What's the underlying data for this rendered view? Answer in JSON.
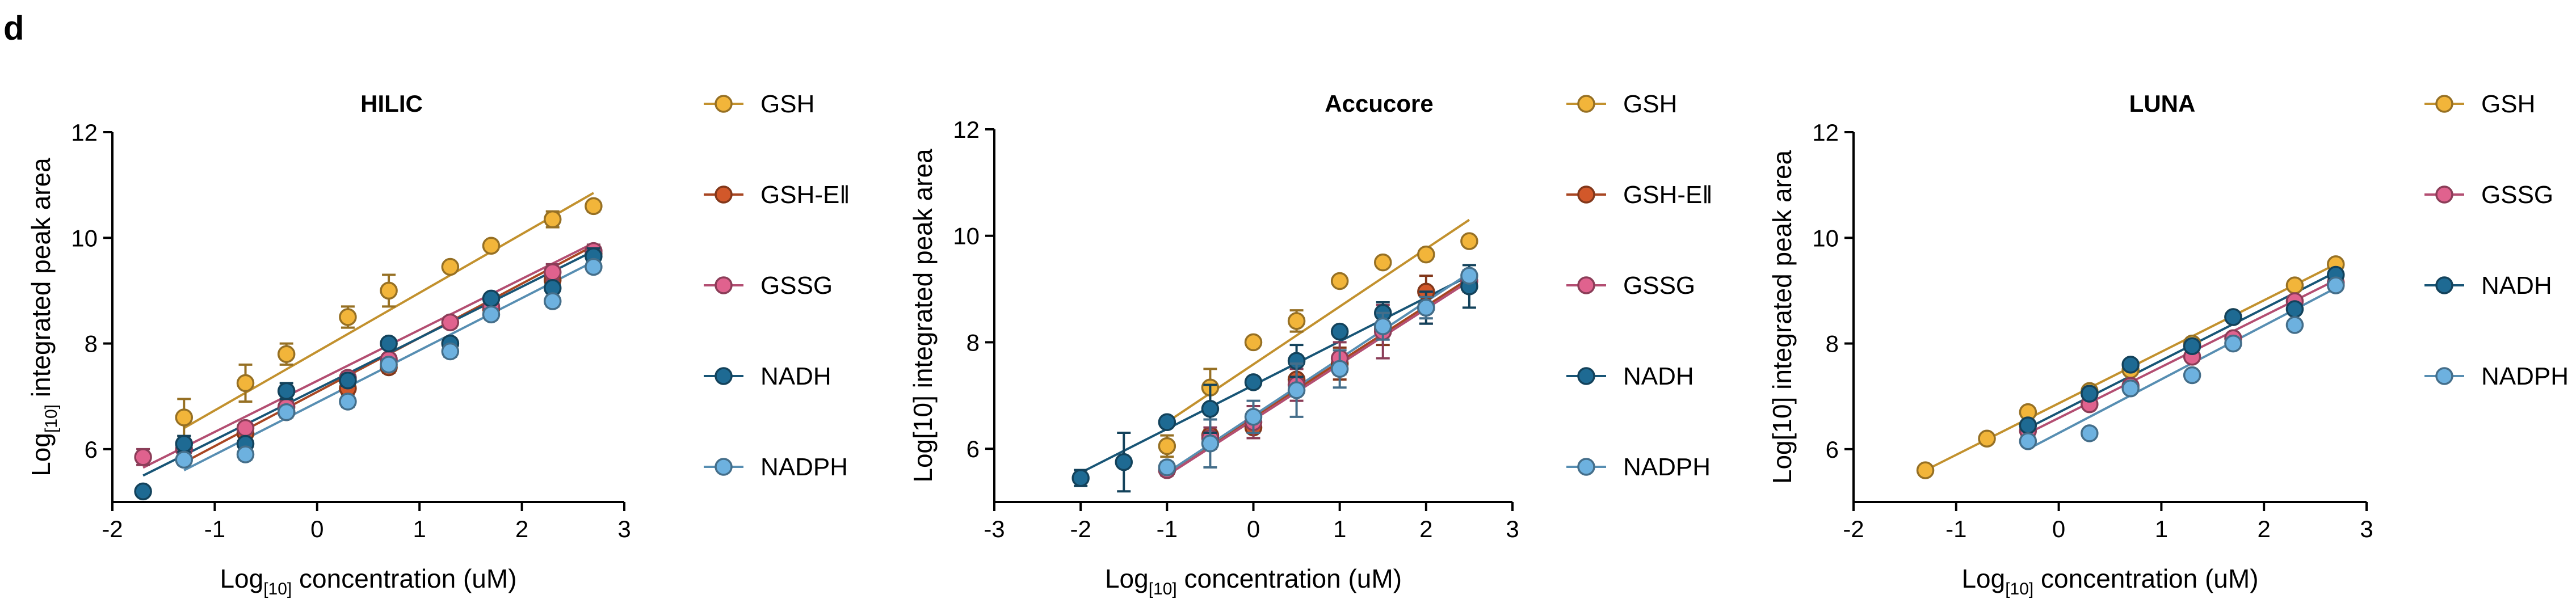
{
  "panel_label": "d",
  "colors": {
    "GSH": "#F2B53A",
    "GSH-Ell": "#D2582A",
    "GSSG": "#E0628E",
    "NADH": "#1E6A93",
    "NADPH": "#6DB1DF"
  },
  "chart_data": [
    {
      "type": "scatter",
      "title": "HILIC",
      "xlabel": "Log[10] concentration (uM)",
      "xlabel_parts": [
        "Log",
        "[10]",
        " concentration (uM)"
      ],
      "ylabel": "Log[10] integrated peak area",
      "ylabel_parts": [
        "Log",
        "[10]",
        " integrated peak area"
      ],
      "xlim": [
        -2,
        3
      ],
      "ylim": [
        5,
        12
      ],
      "xticks": [
        -2,
        -1,
        0,
        1,
        2,
        3
      ],
      "yticks": [
        6,
        8,
        10,
        12
      ],
      "legend": [
        "GSH",
        "GSH-Ell",
        "GSSG",
        "NADH",
        "NADPH"
      ],
      "legend_labels": [
        "GSH",
        "GSH-Eǁ",
        "GSSG",
        "NADH",
        "NADPH"
      ],
      "series": [
        {
          "name": "GSH",
          "x": [
            -1.3,
            -0.7,
            -0.3,
            0.3,
            0.7,
            1.3,
            1.7,
            2.3,
            2.7
          ],
          "y": [
            6.6,
            7.25,
            7.8,
            8.5,
            9.0,
            9.45,
            9.85,
            10.35,
            10.6
          ],
          "err": [
            0.35,
            0.35,
            0.2,
            0.2,
            0.3,
            0.08,
            0.08,
            0.15,
            0.1
          ],
          "fit": [
            [
              -1.3,
              6.4
            ],
            [
              2.7,
              10.85
            ]
          ]
        },
        {
          "name": "GSH-Ell",
          "x": [
            -0.7,
            -0.3,
            0.3,
            0.7,
            1.3,
            1.7,
            2.3,
            2.7
          ],
          "y": [
            6.3,
            6.7,
            7.15,
            7.55,
            8.0,
            8.65,
            9.2,
            9.7
          ],
          "err": [
            0.1,
            0.1,
            0.1,
            0.1,
            0.1,
            0.1,
            0.1,
            0.15
          ],
          "fit": [
            [
              -1.3,
              5.75
            ],
            [
              2.7,
              9.85
            ]
          ]
        },
        {
          "name": "GSSG",
          "x": [
            -1.7,
            -1.3,
            -0.7,
            -0.3,
            0.3,
            0.7,
            1.3,
            1.7,
            2.3,
            2.7
          ],
          "y": [
            5.85,
            6.0,
            6.4,
            6.8,
            7.35,
            7.7,
            8.4,
            8.7,
            9.35,
            9.75
          ],
          "err": [
            0.15,
            0.1,
            0.1,
            0.1,
            0.1,
            0.1,
            0.1,
            0.1,
            0.15,
            0.12
          ],
          "fit": [
            [
              -1.7,
              5.65
            ],
            [
              2.7,
              9.9
            ]
          ]
        },
        {
          "name": "NADH",
          "x": [
            -1.7,
            -1.3,
            -0.7,
            -0.3,
            0.3,
            0.7,
            1.3,
            1.7,
            2.3,
            2.7
          ],
          "y": [
            5.2,
            6.1,
            6.1,
            7.1,
            7.3,
            8.0,
            8.0,
            8.85,
            9.05,
            9.65
          ],
          "err": [
            0.05,
            0.15,
            0.1,
            0.15,
            0.1,
            0.05,
            0.05,
            0.08,
            0.08,
            0.15
          ],
          "fit": [
            [
              -1.7,
              5.5
            ],
            [
              2.7,
              9.75
            ]
          ]
        },
        {
          "name": "NADPH",
          "x": [
            -1.3,
            -0.7,
            -0.3,
            0.3,
            0.7,
            1.3,
            1.7,
            2.3,
            2.7
          ],
          "y": [
            5.8,
            5.9,
            6.7,
            6.9,
            7.6,
            7.85,
            8.55,
            8.8,
            9.45
          ],
          "err": [
            0.1,
            0.1,
            0.1,
            0.1,
            0.1,
            0.1,
            0.1,
            0.1,
            0.1
          ],
          "fit": [
            [
              -1.3,
              5.6
            ],
            [
              2.7,
              9.55
            ]
          ]
        }
      ]
    },
    {
      "type": "scatter",
      "title": "Accucore",
      "xlabel": "Log[10] concentration (uM)",
      "xlabel_parts": [
        "Log",
        "[10]",
        " concentration (uM)"
      ],
      "ylabel": "Log[10] integrated peak area",
      "ylabel_parts": [
        "Log[10] integrated peak area"
      ],
      "xlim": [
        -3,
        3
      ],
      "ylim": [
        5,
        12
      ],
      "xticks": [
        -3,
        -2,
        -1,
        0,
        1,
        2,
        3
      ],
      "yticks": [
        6,
        8,
        10,
        12
      ],
      "legend": [
        "GSH",
        "GSH-Ell",
        "GSSG",
        "NADH",
        "NADPH"
      ],
      "legend_labels": [
        "GSH",
        "GSH-Eǁ",
        "GSSG",
        "NADH",
        "NADPH"
      ],
      "series": [
        {
          "name": "GSH",
          "x": [
            -1,
            -0.5,
            0,
            0.5,
            1,
            1.5,
            2,
            2.5
          ],
          "y": [
            6.05,
            7.15,
            8.0,
            8.4,
            9.15,
            9.5,
            9.65,
            9.9
          ],
          "err": [
            0.2,
            0.35,
            0.05,
            0.2,
            0.05,
            0.05,
            0.05,
            0.05
          ],
          "fit": [
            [
              -1,
              6.5
            ],
            [
              2.5,
              10.3
            ]
          ]
        },
        {
          "name": "GSH-Ell",
          "x": [
            -1,
            -0.5,
            0,
            0.5,
            1,
            1.5,
            2,
            2.5
          ],
          "y": [
            5.6,
            6.25,
            6.4,
            7.3,
            7.6,
            8.25,
            8.95,
            9.15
          ],
          "err": [
            0.1,
            0.1,
            0.2,
            0.2,
            0.3,
            0.3,
            0.3,
            0.2
          ],
          "fit": [
            [
              -1,
              5.55
            ],
            [
              2.5,
              9.2
            ]
          ]
        },
        {
          "name": "GSSG",
          "x": [
            -1,
            -0.5,
            0,
            0.5,
            1,
            1.5,
            2,
            2.5
          ],
          "y": [
            5.6,
            6.2,
            6.5,
            7.2,
            7.7,
            8.2,
            8.65,
            9.15
          ],
          "err": [
            0.1,
            0.2,
            0.3,
            0.3,
            0.3,
            0.5,
            0.3,
            0.2
          ],
          "fit": [
            [
              -1,
              5.5
            ],
            [
              2.5,
              9.15
            ]
          ]
        },
        {
          "name": "NADH",
          "x": [
            -2,
            -1.5,
            -1,
            -0.5,
            0,
            0.5,
            1,
            1.5,
            2,
            2.5
          ],
          "y": [
            5.45,
            5.75,
            6.5,
            6.75,
            7.25,
            7.65,
            8.2,
            8.55,
            8.65,
            9.05
          ],
          "err": [
            0.15,
            0.55,
            0.05,
            0.45,
            0.05,
            0.3,
            0.05,
            0.2,
            0.3,
            0.4
          ],
          "fit": [
            [
              -2,
              5.55
            ],
            [
              2.5,
              9.25
            ]
          ]
        },
        {
          "name": "NADPH",
          "x": [
            -1,
            -0.5,
            0,
            0.5,
            1,
            1.5,
            2,
            2.5
          ],
          "y": [
            5.65,
            6.1,
            6.6,
            7.1,
            7.5,
            8.3,
            8.65,
            9.25
          ],
          "err": [
            0.1,
            0.45,
            0.3,
            0.5,
            0.35,
            0.25,
            0.2,
            0.1
          ],
          "fit": [
            [
              -1,
              5.55
            ],
            [
              2.5,
              9.3
            ]
          ]
        }
      ]
    },
    {
      "type": "scatter",
      "title": "LUNA",
      "xlabel": "Log[10] concentration (uM)",
      "xlabel_parts": [
        "Log",
        "[10]",
        " concentration (uM)"
      ],
      "ylabel": "Log[10] integrated peak area",
      "ylabel_parts": [
        "Log[10] integrated peak area"
      ],
      "xlim": [
        -2,
        3
      ],
      "ylim": [
        5,
        12
      ],
      "xticks": [
        -2,
        -1,
        0,
        1,
        2,
        3
      ],
      "yticks": [
        6,
        8,
        10,
        12
      ],
      "legend": [
        "GSH",
        "GSSG",
        "NADH",
        "NADPH"
      ],
      "legend_labels": [
        "GSH",
        "GSSG",
        "NADH",
        "NADPH"
      ],
      "series": [
        {
          "name": "GSH",
          "x": [
            -1.3,
            -0.7,
            -0.3,
            0.3,
            0.7,
            1.3,
            1.7,
            2.3,
            2.7
          ],
          "y": [
            5.6,
            6.2,
            6.7,
            7.1,
            7.5,
            8.0,
            8.5,
            9.1,
            9.5
          ],
          "err": [
            0.05,
            0.05,
            0.05,
            0.05,
            0.05,
            0.05,
            0.05,
            0.05,
            0.05
          ],
          "fit": [
            [
              -1.3,
              5.6
            ],
            [
              2.7,
              9.5
            ]
          ]
        },
        {
          "name": "GSSG",
          "x": [
            -0.3,
            0.3,
            0.7,
            1.3,
            1.7,
            2.3,
            2.7
          ],
          "y": [
            6.35,
            6.85,
            7.2,
            7.75,
            8.1,
            8.8,
            9.15
          ],
          "err": [
            0.05,
            0.05,
            0.05,
            0.05,
            0.05,
            0.05,
            0.05
          ],
          "fit": [
            [
              -0.3,
              6.3
            ],
            [
              2.7,
              9.2
            ]
          ]
        },
        {
          "name": "NADH",
          "x": [
            -0.3,
            0.3,
            0.7,
            1.3,
            1.7,
            2.3,
            2.7
          ],
          "y": [
            6.45,
            7.05,
            7.6,
            7.95,
            8.5,
            8.65,
            9.3
          ],
          "err": [
            0.05,
            0.05,
            0.05,
            0.05,
            0.05,
            0.05,
            0.05
          ],
          "fit": [
            [
              -0.3,
              6.4
            ],
            [
              2.7,
              9.35
            ]
          ]
        },
        {
          "name": "NADPH",
          "x": [
            -0.3,
            0.3,
            0.7,
            1.3,
            1.7,
            2.3,
            2.7
          ],
          "y": [
            6.15,
            6.3,
            7.15,
            7.4,
            8.0,
            8.35,
            9.1
          ],
          "err": [
            0.05,
            0.05,
            0.05,
            0.05,
            0.05,
            0.05,
            0.05
          ],
          "fit": [
            [
              -0.3,
              6.0
            ],
            [
              2.7,
              9.05
            ]
          ]
        }
      ]
    }
  ]
}
